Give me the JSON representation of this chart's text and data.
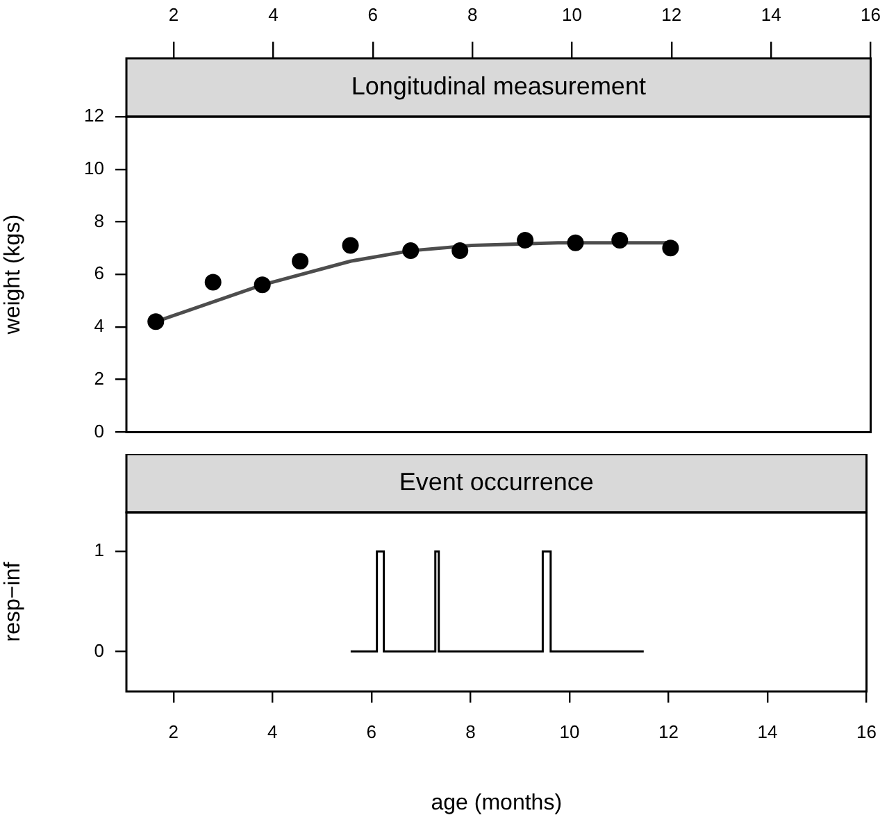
{
  "chart_data": [
    {
      "type": "scatter",
      "title": "Longitudinal measurement",
      "ylabel": "weight (kgs)",
      "xlim": [
        1.05,
        16
      ],
      "xticks": [
        2,
        4,
        6,
        8,
        10,
        12,
        14,
        16
      ],
      "x2lim": [
        1.05,
        16
      ],
      "x2ticks": [
        2,
        4,
        6,
        8,
        10,
        12,
        14,
        16
      ],
      "ylim": [
        0,
        12
      ],
      "yticks": [
        0,
        2,
        4,
        6,
        8,
        10,
        12
      ],
      "tick_labels": "y",
      "series": [
        {
          "type": "scatter",
          "color": "#000000",
          "marker": "circle",
          "x": [
            1.64,
            2.79,
            3.78,
            4.54,
            5.55,
            6.76,
            7.75,
            9.06,
            10.07,
            10.96,
            11.98
          ],
          "values": [
            4.2,
            5.7,
            5.6,
            6.5,
            7.1,
            6.9,
            6.9,
            7.3,
            7.2,
            7.3,
            7.0
          ]
        },
        {
          "type": "line",
          "color": "#4d4d4d",
          "x": [
            1.64,
            3.78,
            5.55,
            6.76,
            7.98,
            9.72,
            11.98
          ],
          "values": [
            4.2,
            5.6,
            6.5,
            6.9,
            7.1,
            7.2,
            7.2
          ]
        }
      ]
    },
    {
      "type": "step",
      "title": "Event occurrence",
      "xlabel": "age (months)",
      "ylabel": "resp−inf",
      "xlim": [
        1.05,
        16
      ],
      "xticks": [
        2,
        4,
        6,
        8,
        10,
        12,
        14,
        16
      ],
      "ylim": [
        -0.4,
        1.39
      ],
      "yticks": [
        0,
        1
      ],
      "color": "#000000",
      "x": [
        5.58,
        6.11,
        6.25,
        7.29,
        7.36,
        9.46,
        9.62,
        11.5
      ],
      "values": [
        0,
        1,
        0,
        1,
        0,
        1,
        0,
        0
      ]
    }
  ]
}
